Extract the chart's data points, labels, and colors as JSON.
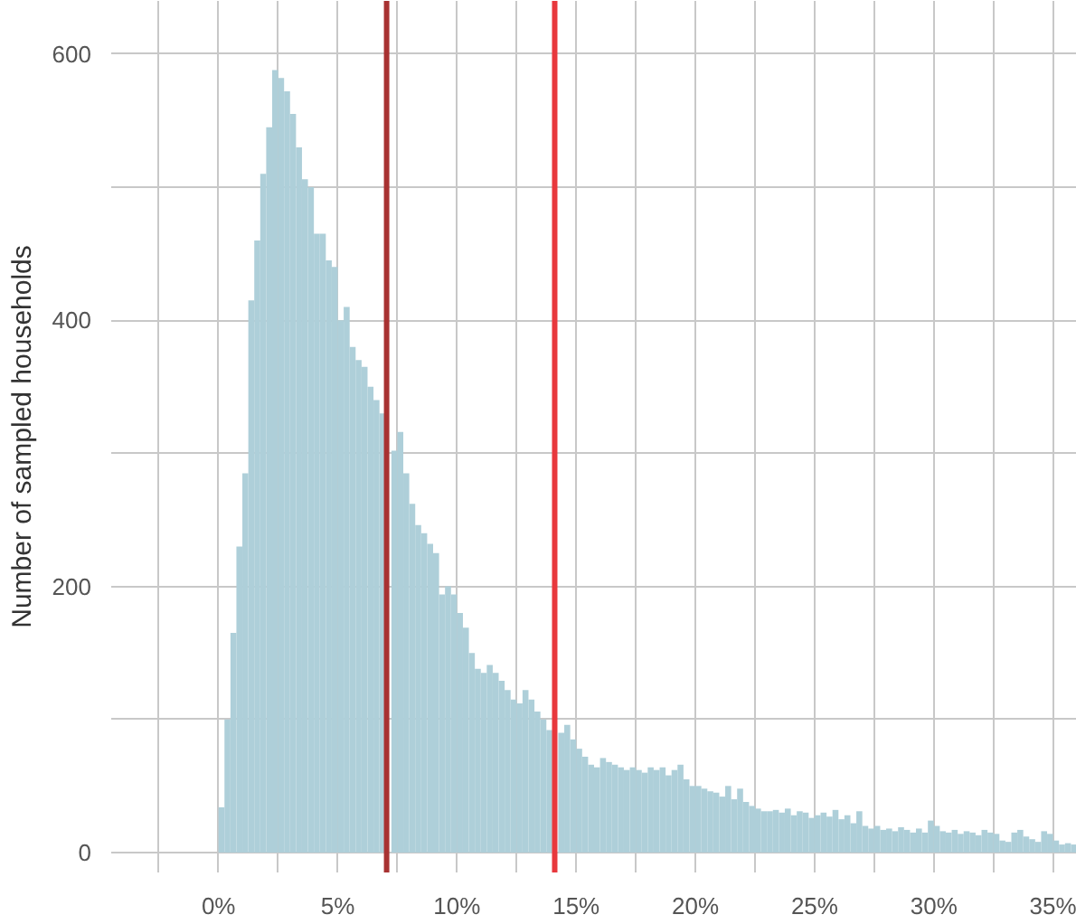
{
  "chart_data": {
    "type": "histogram",
    "ylabel": "Number of sampled households",
    "color": "#aecfd9",
    "bins": [
      0,
      0.25,
      0.5,
      0.75,
      1,
      1.25,
      1.5,
      1.75,
      2,
      2.25,
      2.5,
      2.75,
      3,
      3.25,
      3.5,
      3.75,
      4,
      4.25,
      4.5,
      4.75,
      5,
      5.25,
      5.5,
      5.75,
      6,
      6.25,
      6.5,
      6.75,
      7,
      7.25,
      7.5,
      7.75,
      8,
      8.25,
      8.5,
      8.75,
      9,
      9.25,
      9.5,
      9.75,
      10,
      10.25,
      10.5,
      10.75,
      11,
      11.25,
      11.5,
      11.75,
      12,
      12.25,
      12.5,
      12.75,
      13,
      13.25,
      13.5,
      13.75,
      14,
      14.25,
      14.5,
      14.75,
      15,
      15.25,
      15.5,
      15.75,
      16,
      16.25,
      16.5,
      16.75,
      17,
      17.25,
      17.5,
      17.75,
      18,
      18.25,
      18.5,
      18.75,
      19,
      19.25,
      19.5,
      19.75,
      20,
      20.25,
      20.5,
      20.75,
      21,
      21.25,
      21.5,
      21.75,
      22,
      22.25,
      22.5,
      22.75,
      23,
      23.25,
      23.5,
      23.75,
      24,
      24.25,
      24.5,
      24.75,
      25,
      25.25,
      25.5,
      25.75,
      26,
      26.25,
      26.5,
      26.75,
      27,
      27.25,
      27.5,
      27.75,
      28,
      28.25,
      28.5,
      28.75,
      29,
      29.25,
      29.5,
      29.75,
      30,
      30.25,
      30.5,
      30.75,
      31,
      31.25,
      31.5,
      31.75,
      32,
      32.25,
      32.5,
      32.75,
      33,
      33.25,
      33.5,
      33.75,
      34,
      34.25,
      34.5,
      34.75,
      35,
      35.25,
      35.5,
      35.75,
      36
    ],
    "values": [
      34,
      100,
      165,
      230,
      285,
      415,
      460,
      510,
      545,
      588,
      582,
      572,
      555,
      530,
      506,
      500,
      465,
      465,
      445,
      440,
      400,
      410,
      380,
      370,
      365,
      350,
      340,
      330,
      null,
      302,
      316,
      285,
      262,
      246,
      240,
      232,
      225,
      194,
      200,
      194,
      180,
      169,
      150,
      138,
      135,
      141,
      135,
      129,
      122,
      115,
      112,
      122,
      115,
      106,
      100,
      92,
      null,
      90,
      96,
      85,
      78,
      72,
      66,
      64,
      71,
      68,
      66,
      64,
      62,
      64,
      62,
      60,
      64,
      62,
      64,
      58,
      62,
      66,
      55,
      50,
      50,
      48,
      46,
      45,
      42,
      50,
      40,
      48,
      38,
      35,
      33,
      31,
      31,
      32,
      30,
      33,
      28,
      31,
      30,
      26,
      28,
      30,
      27,
      32,
      25,
      28,
      22,
      31,
      20,
      18,
      20,
      17,
      18,
      16,
      19,
      17,
      15,
      18,
      15,
      24,
      20,
      16,
      15,
      17,
      14,
      16,
      15,
      13,
      17,
      15,
      14,
      9,
      8,
      15,
      17,
      12,
      10,
      8,
      16,
      14,
      9,
      6,
      7,
      6
    ],
    "xlim": [
      -4.5,
      36
    ],
    "xticks": [
      {
        "value": -2.5,
        "label": null
      },
      {
        "value": 0,
        "label": "0%"
      },
      {
        "value": 2.5,
        "label": null
      },
      {
        "value": 5,
        "label": "5%"
      },
      {
        "value": 7.5,
        "label": null
      },
      {
        "value": 10,
        "label": "10%"
      },
      {
        "value": 12.5,
        "label": null
      },
      {
        "value": 15,
        "label": "15%"
      },
      {
        "value": 17.5,
        "label": null
      },
      {
        "value": 20,
        "label": "20%"
      },
      {
        "value": 22.5,
        "label": null
      },
      {
        "value": 25,
        "label": "25%"
      },
      {
        "value": 27.5,
        "label": null
      },
      {
        "value": 30,
        "label": "30%"
      },
      {
        "value": 32.5,
        "label": null
      },
      {
        "value": 35,
        "label": "35%"
      }
    ],
    "ylim": [
      -15,
      640
    ],
    "yticks": [
      0,
      {
        "value": 100,
        "label": null
      },
      200,
      {
        "value": 300,
        "label": null
      },
      400,
      {
        "value": 500,
        "label": null
      },
      600
    ],
    "grid": true,
    "ref_lines": [
      {
        "axis": "x",
        "value": 7.05,
        "color": "#a83232"
      },
      {
        "axis": "x",
        "value": 14.1,
        "color": "#e8383d"
      }
    ]
  }
}
